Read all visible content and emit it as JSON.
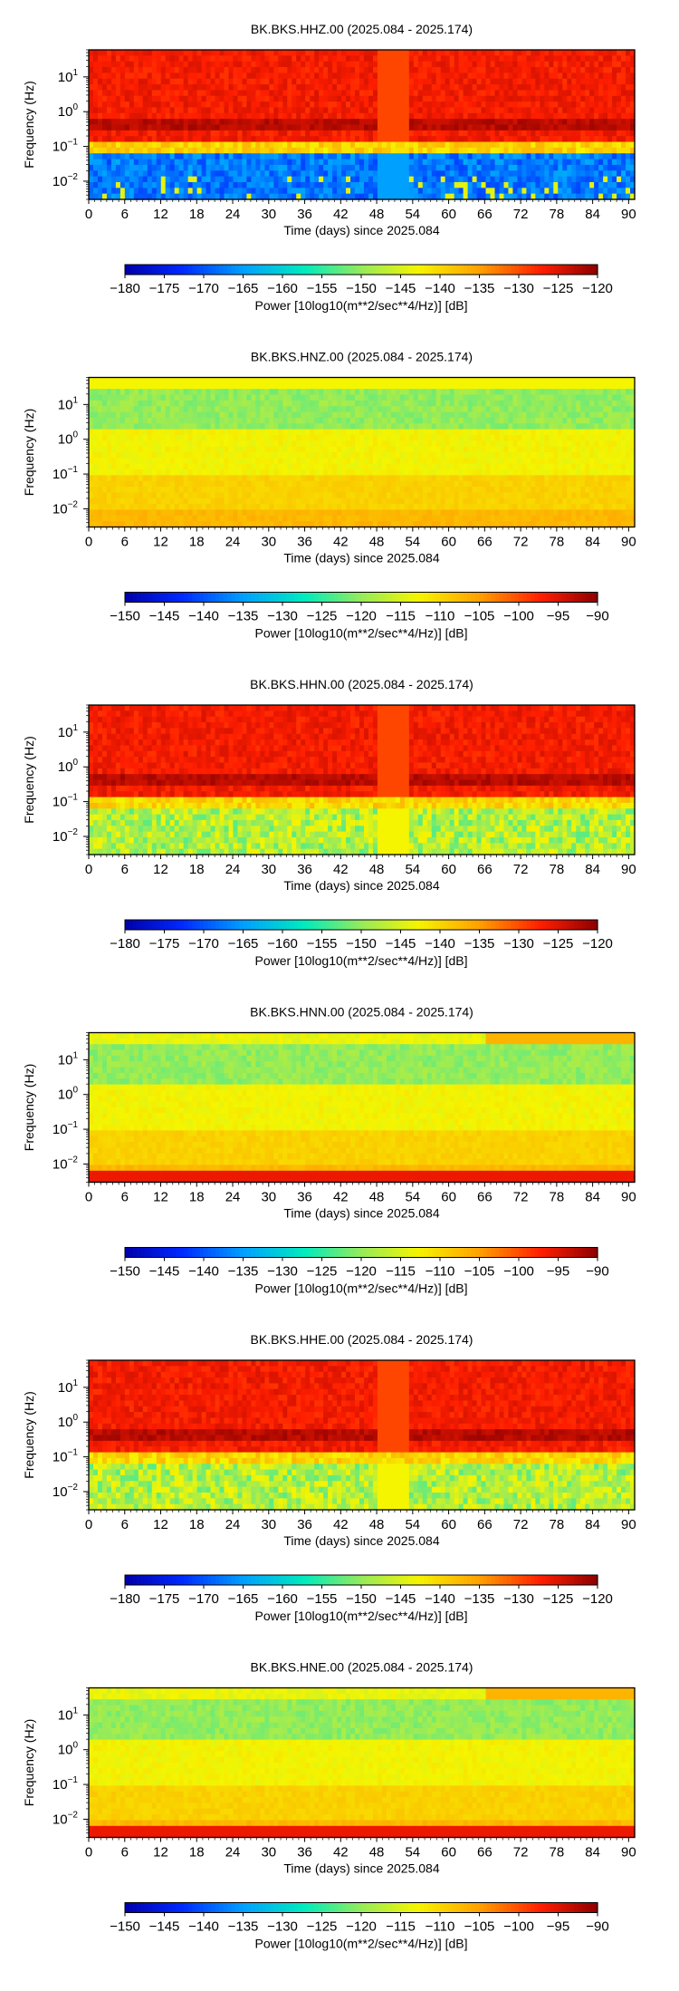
{
  "chart_data": [
    {
      "type": "heatmap",
      "title": "BK.BKS.HHZ.00 (2025.084 - 2025.174)",
      "xlabel": "Time (days) since 2025.084",
      "ylabel": "Frequency (Hz)",
      "xlim": [
        0,
        91
      ],
      "x_ticks": [
        "0",
        "6",
        "12",
        "18",
        "24",
        "30",
        "36",
        "42",
        "48",
        "54",
        "60",
        "66",
        "72",
        "78",
        "84",
        "90"
      ],
      "y_ticks": [
        "10^-2",
        "10^-1",
        "10^0",
        "10^1"
      ],
      "y_scale": "log",
      "ylim": [
        0.003,
        60
      ],
      "colorbar": {
        "label": "Power [10log10(m**2/sec**4/Hz)] [dB]",
        "range": [
          -180,
          -120
        ],
        "ticks": [
          "−180",
          "−175",
          "−170",
          "−165",
          "−160",
          "−155",
          "−150",
          "−145",
          "−140",
          "−135",
          "−130",
          "−125",
          "−120"
        ]
      },
      "style": "hh_high"
    },
    {
      "type": "heatmap",
      "title": "BK.BKS.HNZ.00 (2025.084 - 2025.174)",
      "xlabel": "Time (days) since 2025.084",
      "ylabel": "Frequency (Hz)",
      "xlim": [
        0,
        91
      ],
      "x_ticks": [
        "0",
        "6",
        "12",
        "18",
        "24",
        "30",
        "36",
        "42",
        "48",
        "54",
        "60",
        "66",
        "72",
        "78",
        "84",
        "90"
      ],
      "y_ticks": [
        "10^-2",
        "10^-1",
        "10^0",
        "10^1"
      ],
      "y_scale": "log",
      "ylim": [
        0.003,
        60
      ],
      "colorbar": {
        "label": "Power [10log10(m**2/sec**4/Hz)] [dB]",
        "range": [
          -150,
          -90
        ],
        "ticks": [
          "−150",
          "−145",
          "−140",
          "−135",
          "−130",
          "−125",
          "−120",
          "−115",
          "−110",
          "−105",
          "−100",
          "−95",
          "−90"
        ]
      },
      "style": "hn"
    },
    {
      "type": "heatmap",
      "title": "BK.BKS.HHN.00 (2025.084 - 2025.174)",
      "xlabel": "Time (days) since 2025.084",
      "ylabel": "Frequency (Hz)",
      "xlim": [
        0,
        91
      ],
      "x_ticks": [
        "0",
        "6",
        "12",
        "18",
        "24",
        "30",
        "36",
        "42",
        "48",
        "54",
        "60",
        "66",
        "72",
        "78",
        "84",
        "90"
      ],
      "y_ticks": [
        "10^-2",
        "10^-1",
        "10^0",
        "10^1"
      ],
      "y_scale": "log",
      "ylim": [
        0.003,
        60
      ],
      "colorbar": {
        "label": "Power [10log10(m**2/sec**4/Hz)] [dB]",
        "range": [
          -180,
          -120
        ],
        "ticks": [
          "−180",
          "−175",
          "−170",
          "−165",
          "−160",
          "−155",
          "−150",
          "−145",
          "−140",
          "−135",
          "−130",
          "−125",
          "−120"
        ]
      },
      "style": "hh_horiz"
    },
    {
      "type": "heatmap",
      "title": "BK.BKS.HNN.00 (2025.084 - 2025.174)",
      "xlabel": "Time (days) since 2025.084",
      "ylabel": "Frequency (Hz)",
      "xlim": [
        0,
        91
      ],
      "x_ticks": [
        "0",
        "6",
        "12",
        "18",
        "24",
        "30",
        "36",
        "42",
        "48",
        "54",
        "60",
        "66",
        "72",
        "78",
        "84",
        "90"
      ],
      "y_ticks": [
        "10^-2",
        "10^-1",
        "10^0",
        "10^1"
      ],
      "y_scale": "log",
      "ylim": [
        0.003,
        60
      ],
      "colorbar": {
        "label": "Power [10log10(m**2/sec**4/Hz)] [dB]",
        "range": [
          -150,
          -90
        ],
        "ticks": [
          "−150",
          "−145",
          "−140",
          "−135",
          "−130",
          "−125",
          "−120",
          "−115",
          "−110",
          "−105",
          "−100",
          "−95",
          "−90"
        ]
      },
      "style": "hn_horiz"
    },
    {
      "type": "heatmap",
      "title": "BK.BKS.HHE.00 (2025.084 - 2025.174)",
      "xlabel": "Time (days) since 2025.084",
      "ylabel": "Frequency (Hz)",
      "xlim": [
        0,
        91
      ],
      "x_ticks": [
        "0",
        "6",
        "12",
        "18",
        "24",
        "30",
        "36",
        "42",
        "48",
        "54",
        "60",
        "66",
        "72",
        "78",
        "84",
        "90"
      ],
      "y_ticks": [
        "10^-2",
        "10^-1",
        "10^0",
        "10^1"
      ],
      "y_scale": "log",
      "ylim": [
        0.003,
        60
      ],
      "colorbar": {
        "label": "Power [10log10(m**2/sec**4/Hz)] [dB]",
        "range": [
          -180,
          -120
        ],
        "ticks": [
          "−180",
          "−175",
          "−170",
          "−165",
          "−160",
          "−155",
          "−150",
          "−145",
          "−140",
          "−135",
          "−130",
          "−125",
          "−120"
        ]
      },
      "style": "hh_horiz"
    },
    {
      "type": "heatmap",
      "title": "BK.BKS.HNE.00 (2025.084 - 2025.174)",
      "xlabel": "Time (days) since 2025.084",
      "ylabel": "Frequency (Hz)",
      "xlim": [
        0,
        91
      ],
      "x_ticks": [
        "0",
        "6",
        "12",
        "18",
        "24",
        "30",
        "36",
        "42",
        "48",
        "54",
        "60",
        "66",
        "72",
        "78",
        "84",
        "90"
      ],
      "y_ticks": [
        "10^-2",
        "10^-1",
        "10^0",
        "10^1"
      ],
      "y_scale": "log",
      "ylim": [
        0.003,
        60
      ],
      "colorbar": {
        "label": "Power [10log10(m**2/sec**4/Hz)] [dB]",
        "range": [
          -150,
          -90
        ],
        "ticks": [
          "−150",
          "−145",
          "−140",
          "−135",
          "−130",
          "−125",
          "−120",
          "−115",
          "−110",
          "−105",
          "−100",
          "−95",
          "−90"
        ]
      },
      "style": "hn_horiz"
    }
  ]
}
